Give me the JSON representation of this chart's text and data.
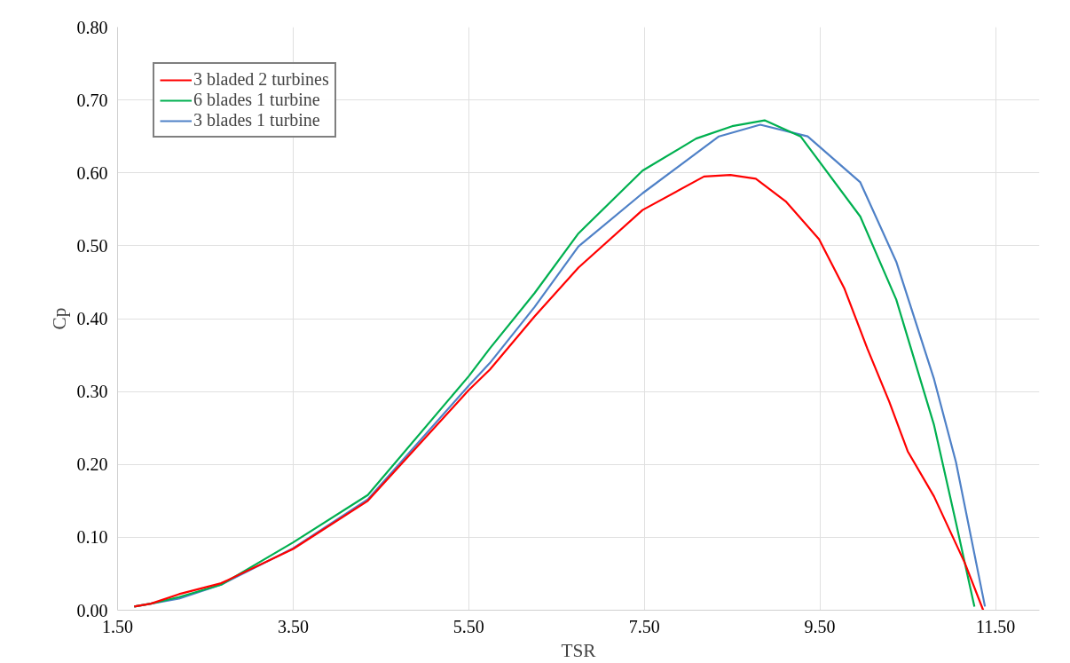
{
  "chart_data": {
    "type": "line",
    "xlabel": "TSR",
    "ylabel": "Cp",
    "xlim": [
      1.5,
      12.0
    ],
    "xticks": [
      {
        "value": 1.5,
        "label": "1.50"
      },
      {
        "value": 3.5,
        "label": "3.50"
      },
      {
        "value": 5.5,
        "label": "5.50"
      },
      {
        "value": 7.5,
        "label": "7.50"
      },
      {
        "value": 9.5,
        "label": "9.50"
      },
      {
        "value": 11.5,
        "label": "11.50"
      }
    ],
    "ylim": [
      0,
      0.8
    ],
    "yticks": [
      {
        "value": 0,
        "label": "0.00"
      },
      {
        "value": 0.1,
        "label": "0.10"
      },
      {
        "value": 0.2,
        "label": "0.20"
      },
      {
        "value": 0.3,
        "label": "0.30"
      },
      {
        "value": 0.4,
        "label": "0.40"
      },
      {
        "value": 0.5,
        "label": "0.50"
      },
      {
        "value": 0.6,
        "label": "0.60"
      },
      {
        "value": 0.7,
        "label": "0.70"
      },
      {
        "value": 0.8,
        "label": "0.80"
      }
    ],
    "grid": true,
    "legend": "top left",
    "marker": "none",
    "line_style": "solid",
    "series": [
      {
        "name": "3 bladed 2 turbines",
        "color": "#ff0000",
        "x": [
          1.69,
          1.88,
          2.2,
          2.68,
          3.5,
          4.35,
          5.5,
          5.74,
          6.25,
          6.75,
          7.48,
          8.18,
          8.48,
          8.77,
          9.11,
          9.49,
          9.78,
          10.04,
          10.29,
          10.5,
          10.8,
          11.15,
          11.36
        ],
        "values": [
          0.005,
          0.009,
          0.022,
          0.037,
          0.084,
          0.15,
          0.302,
          0.33,
          0.403,
          0.47,
          0.549,
          0.595,
          0.597,
          0.592,
          0.561,
          0.509,
          0.441,
          0.359,
          0.286,
          0.218,
          0.156,
          0.065,
          0.0
        ]
      },
      {
        "name": "6 blades 1 turbine",
        "color": "#00b050",
        "x": [
          1.69,
          1.88,
          2.2,
          2.68,
          3.5,
          4.35,
          5.5,
          5.74,
          6.25,
          6.75,
          7.48,
          8.09,
          8.5,
          8.87,
          9.28,
          9.96,
          10.37,
          10.8,
          11.05,
          11.26
        ],
        "values": [
          0.005,
          0.009,
          0.018,
          0.035,
          0.093,
          0.158,
          0.321,
          0.359,
          0.435,
          0.517,
          0.603,
          0.647,
          0.664,
          0.672,
          0.65,
          0.54,
          0.426,
          0.254,
          0.12,
          0.005
        ]
      },
      {
        "name": "3 blades 1 turbine",
        "color": "#4f81c7",
        "x": [
          1.69,
          1.88,
          2.2,
          2.68,
          3.5,
          4.35,
          5.5,
          5.74,
          6.25,
          6.75,
          7.48,
          8.35,
          8.82,
          9.36,
          9.96,
          10.37,
          10.8,
          11.05,
          11.38
        ],
        "values": [
          0.005,
          0.009,
          0.016,
          0.035,
          0.085,
          0.152,
          0.308,
          0.339,
          0.416,
          0.499,
          0.572,
          0.65,
          0.666,
          0.65,
          0.587,
          0.478,
          0.317,
          0.203,
          0.005
        ]
      }
    ]
  }
}
